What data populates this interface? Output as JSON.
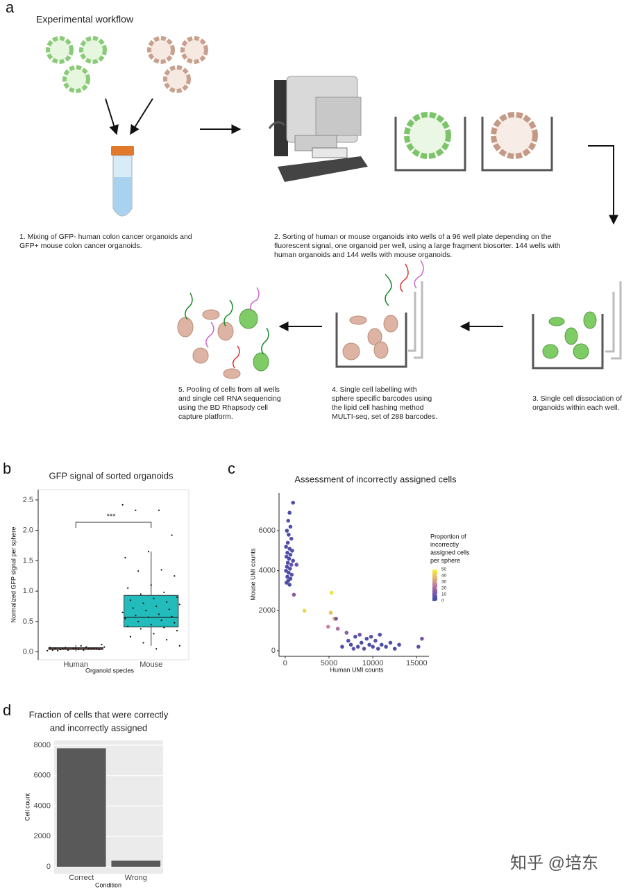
{
  "panel_labels": [
    "a",
    "b",
    "c",
    "d"
  ],
  "workflow": {
    "title": "Experimental workflow",
    "steps": [
      [
        "1. Mixing of GFP- human colon cancer organoids and",
        "GFP+ mouse colon cancer organoids."
      ],
      [
        "2. Sorting of human or mouse organoids into wells of a 96 well plate depending on the",
        "fluorescent signal, one organoid per well, using a large fragment biosorter. 144 wells with",
        "human organoids and 144 wells with mouse organoids."
      ],
      [
        "3. Single cell dissociation of",
        "organoids within each well."
      ],
      [
        "4. Single cell labelling with",
        "sphere specific barcodes using",
        "the lipid cell hashing method",
        "MULTI-seq, set of 288 barcodes."
      ],
      [
        "5. Pooling of cells from all wells",
        "and single cell RNA sequencing",
        "using the BD Rhapsody cell",
        "capture platform."
      ]
    ]
  },
  "watermark": "知乎 @培东",
  "chart_data": [
    {
      "type": "box",
      "title": "GFP signal of sorted organoids",
      "x_label": "Organoid species",
      "y_label": "Normalized GFP signal per sphere",
      "annotation": "***",
      "categories": [
        "Human",
        "Mouse"
      ],
      "colors": [
        "#e07a72",
        "#22bcbc"
      ],
      "boxes": [
        {
          "min": 0.01,
          "q1": 0.04,
          "median": 0.055,
          "q3": 0.07,
          "max": 0.11
        },
        {
          "min": 0.1,
          "q1": 0.41,
          "median": 0.57,
          "q3": 0.93,
          "max": 1.65
        }
      ],
      "points": [
        [
          0.02,
          0.03,
          0.04,
          0.05,
          0.06,
          0.07,
          0.08,
          0.05,
          0.04,
          0.06,
          0.03,
          0.05,
          0.07,
          0.12,
          0.04,
          0.06,
          0.05,
          0.03,
          0.08,
          0.1,
          0.02,
          0.06
        ],
        [
          2.42,
          2.33,
          2.33,
          1.92,
          1.65,
          1.55,
          1.35,
          1.33,
          1.25,
          1.1,
          1.05,
          0.98,
          0.95,
          0.9,
          0.88,
          0.85,
          0.82,
          0.8,
          0.78,
          0.75,
          0.72,
          0.7,
          0.68,
          0.65,
          0.62,
          0.6,
          0.58,
          0.57,
          0.55,
          0.52,
          0.5,
          0.48,
          0.45,
          0.42,
          0.4,
          0.38,
          0.35,
          0.3,
          0.25,
          0.2,
          0.15,
          0.1,
          0.05
        ]
      ],
      "ylim": [
        -0.13,
        2.67
      ],
      "yticks": [
        {
          "value": 0,
          "label": "0.0"
        },
        0.5,
        {
          "value": 1,
          "label": "1.0"
        },
        1.5,
        {
          "value": 2,
          "label": "2.0"
        },
        2.5
      ]
    },
    {
      "type": "scatter",
      "title": "Assessment of incorrectly assigned cells",
      "x_label": "Human UMI counts",
      "y_label": "Mouse UMI counts",
      "legend_title": [
        "Proportion of",
        "incorrectly",
        "assigned cells",
        "per sphere"
      ],
      "colormap": [
        "#3f4ca6",
        "#7b55a8",
        "#c07aa2",
        "#e6b46a",
        "#f4ea3a"
      ],
      "color_ticks": [
        0,
        10,
        20,
        30,
        40,
        50
      ],
      "x": [
        900,
        500,
        350,
        600,
        200,
        400,
        700,
        300,
        100,
        500,
        800,
        250,
        600,
        150,
        450,
        900,
        300,
        700,
        1300,
        200,
        550,
        100,
        400,
        750,
        250,
        600,
        350,
        150,
        1000,
        500,
        2200,
        5300,
        5200,
        5600,
        4900,
        6000,
        5800,
        6500,
        7200,
        7500,
        8000,
        8300,
        8700,
        9000,
        9300,
        9600,
        10000,
        10300,
        10600,
        11000,
        11500,
        12000,
        12500,
        13000,
        7800,
        8500,
        9800,
        15600,
        15200,
        7000,
        10800
      ],
      "y": [
        7400,
        6900,
        6500,
        6200,
        6000,
        5800,
        5600,
        5400,
        5200,
        5100,
        5000,
        4900,
        4800,
        4700,
        4600,
        4500,
        4400,
        4300,
        4300,
        4200,
        4100,
        4000,
        3900,
        3800,
        3700,
        3600,
        3500,
        3400,
        2800,
        3300,
        2000,
        2900,
        1900,
        1600,
        1200,
        1100,
        1600,
        200,
        500,
        300,
        700,
        200,
        400,
        100,
        600,
        300,
        200,
        500,
        100,
        300,
        200,
        400,
        100,
        300,
        100,
        800,
        700,
        600,
        200,
        900,
        800
      ],
      "color_values": [
        3,
        2,
        5,
        4,
        3,
        2,
        6,
        3,
        2,
        4,
        3,
        2,
        5,
        3,
        2,
        4,
        3,
        8,
        10,
        2,
        3,
        4,
        2,
        6,
        3,
        2,
        4,
        3,
        15,
        2,
        45,
        48,
        40,
        38,
        28,
        22,
        12,
        3,
        5,
        2,
        4,
        3,
        2,
        5,
        3,
        2,
        4,
        6,
        3,
        2,
        3,
        4,
        2,
        3,
        8,
        10,
        5,
        12,
        6,
        15,
        4
      ],
      "xlim": [
        -700,
        16400
      ],
      "ylim": [
        -280,
        7880
      ],
      "xticks": [
        0,
        5000,
        10000,
        15000
      ],
      "yticks": [
        0,
        2000,
        4000,
        6000
      ]
    },
    {
      "type": "bar",
      "title": [
        "Fraction of cells that were correctly",
        "and incorrectly assigned"
      ],
      "x_label": "Condition",
      "y_label": "Cell count",
      "categories": [
        "Correct",
        "Wrong"
      ],
      "values": [
        7800,
        400
      ],
      "color": "#595959",
      "background": "#ebebeb",
      "grid": true,
      "ylim": [
        -460,
        8320
      ],
      "yticks": [
        0,
        2000,
        4000,
        6000,
        8000
      ]
    }
  ]
}
